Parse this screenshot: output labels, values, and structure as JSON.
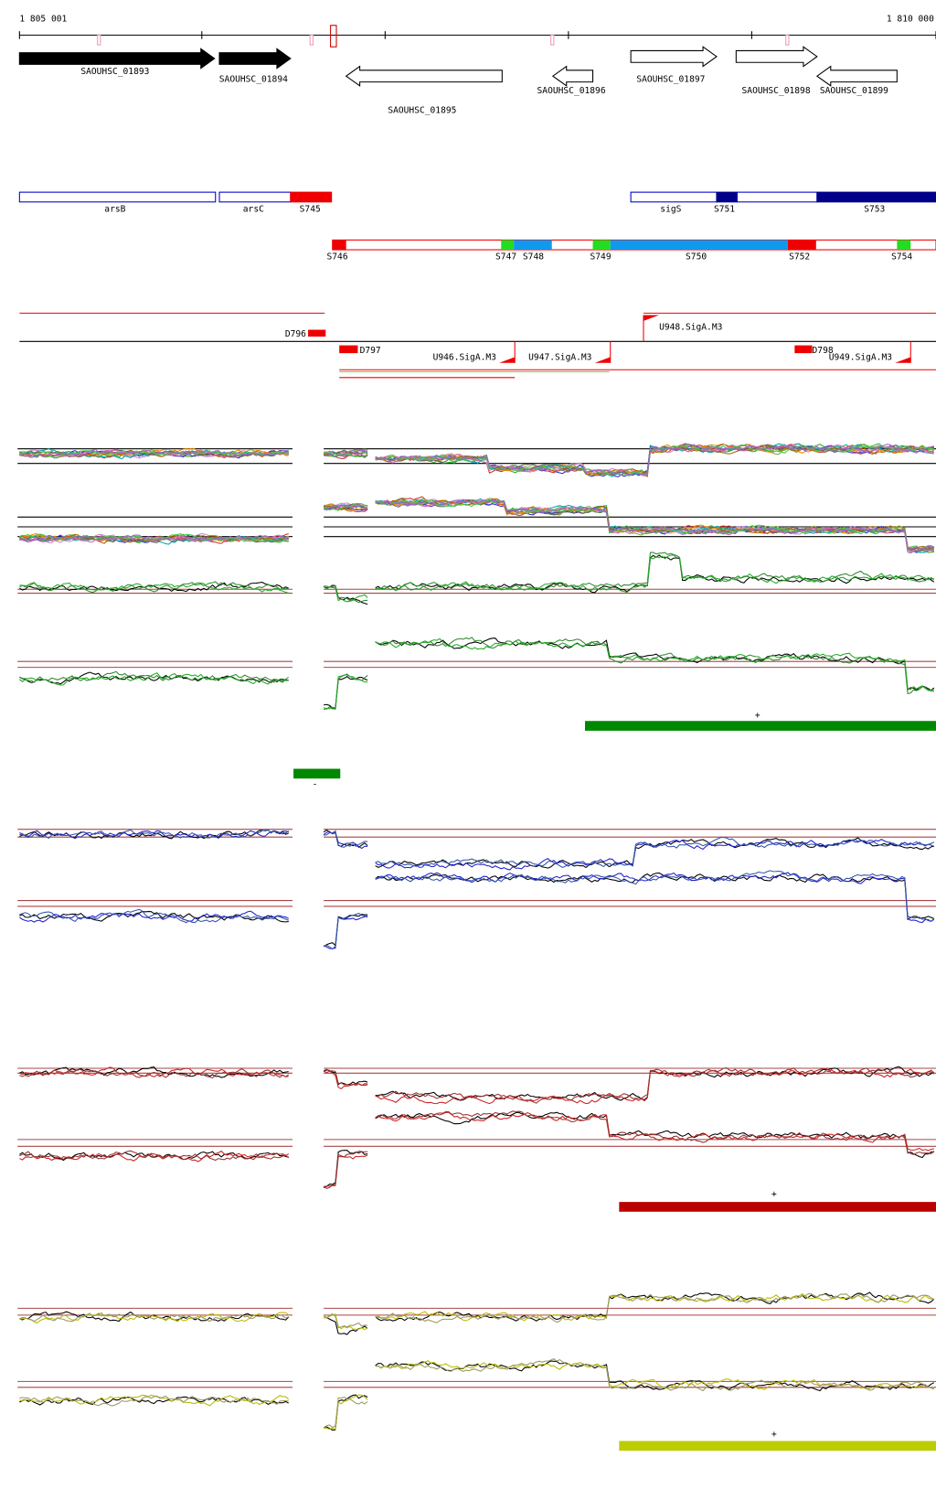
{
  "ruler": {
    "start": "1 805 001",
    "end": "1 810 000"
  },
  "genes": [
    "SAOUHSC_01893",
    "SAOUHSC_01894",
    "SAOUHSC_01895",
    "SAOUHSC_01896",
    "SAOUHSC_01897",
    "SAOUHSC_01898",
    "SAOUHSC_01899"
  ],
  "annotations": [
    "arsB",
    "arsC",
    "S745",
    "sigS",
    "S751",
    "S753"
  ],
  "segments": [
    "S746",
    "S747",
    "S748",
    "S749",
    "S750",
    "S752",
    "S754"
  ],
  "features": [
    "D796",
    "D797",
    "U946.SigA.M3",
    "U947.SigA.M3",
    "U948.SigA.M3",
    "D798",
    "U949.SigA.M3"
  ],
  "strand_labels": [
    "+",
    "-",
    "+",
    "+"
  ]
}
